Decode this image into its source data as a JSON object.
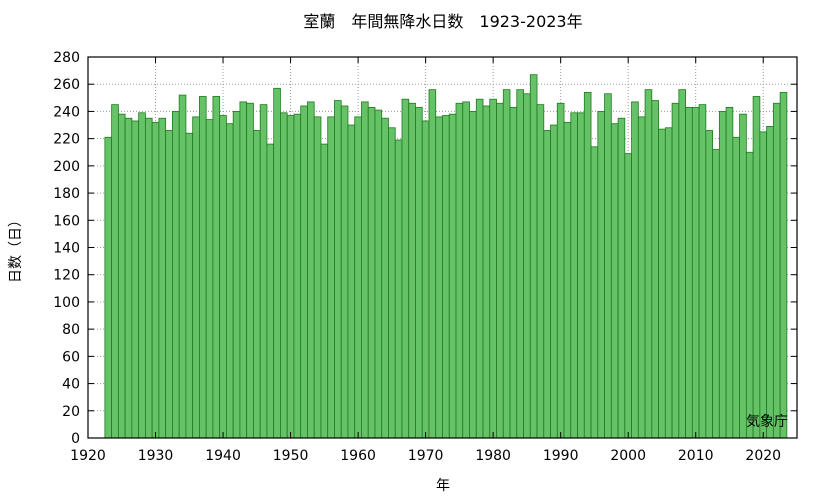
{
  "chart_data": {
    "type": "bar",
    "title": "室蘭　年間無降水日数　1923-2023年",
    "xlabel": "年",
    "ylabel": "日数（日）",
    "credit": "気象庁",
    "xlim": [
      1920,
      2025
    ],
    "ylim": [
      0,
      280
    ],
    "x_ticks": [
      1920,
      1930,
      1940,
      1950,
      1960,
      1970,
      1980,
      1990,
      2000,
      2010,
      2020
    ],
    "y_ticks": [
      0,
      20,
      40,
      60,
      80,
      100,
      120,
      140,
      160,
      180,
      200,
      220,
      240,
      260,
      280
    ],
    "grid": true,
    "colors": {
      "bar_fill": "#66c266",
      "bar_stroke": "#1f7a1f"
    },
    "x": [
      1923,
      1924,
      1925,
      1926,
      1927,
      1928,
      1929,
      1930,
      1931,
      1932,
      1933,
      1934,
      1935,
      1936,
      1937,
      1938,
      1939,
      1940,
      1941,
      1942,
      1943,
      1944,
      1945,
      1946,
      1947,
      1948,
      1949,
      1950,
      1951,
      1952,
      1953,
      1954,
      1955,
      1956,
      1957,
      1958,
      1959,
      1960,
      1961,
      1962,
      1963,
      1964,
      1965,
      1966,
      1967,
      1968,
      1969,
      1970,
      1971,
      1972,
      1973,
      1974,
      1975,
      1976,
      1977,
      1978,
      1979,
      1980,
      1981,
      1982,
      1983,
      1984,
      1985,
      1986,
      1987,
      1988,
      1989,
      1990,
      1991,
      1992,
      1993,
      1994,
      1995,
      1996,
      1997,
      1998,
      1999,
      2000,
      2001,
      2002,
      2003,
      2004,
      2005,
      2006,
      2007,
      2008,
      2009,
      2010,
      2011,
      2012,
      2013,
      2014,
      2015,
      2016,
      2017,
      2018,
      2019,
      2020,
      2021,
      2022,
      2023
    ],
    "values": [
      221,
      245,
      238,
      235,
      233,
      239,
      235,
      232,
      235,
      226,
      240,
      252,
      224,
      236,
      251,
      234,
      251,
      237,
      231,
      240,
      247,
      246,
      226,
      245,
      216,
      257,
      239,
      237,
      238,
      244,
      247,
      236,
      216,
      236,
      248,
      244,
      230,
      236,
      247,
      243,
      241,
      235,
      228,
      219,
      249,
      246,
      243,
      233,
      256,
      236,
      237,
      238,
      246,
      247,
      240,
      249,
      244,
      249,
      246,
      256,
      243,
      256,
      253,
      267,
      245,
      226,
      230,
      246,
      232,
      239,
      239,
      254,
      214,
      240,
      253,
      231,
      235,
      209,
      247,
      236,
      256,
      248,
      227,
      228,
      246,
      256,
      243,
      243,
      245,
      226,
      212,
      240,
      243,
      221,
      238,
      210,
      251,
      225,
      229,
      246,
      254
    ]
  }
}
